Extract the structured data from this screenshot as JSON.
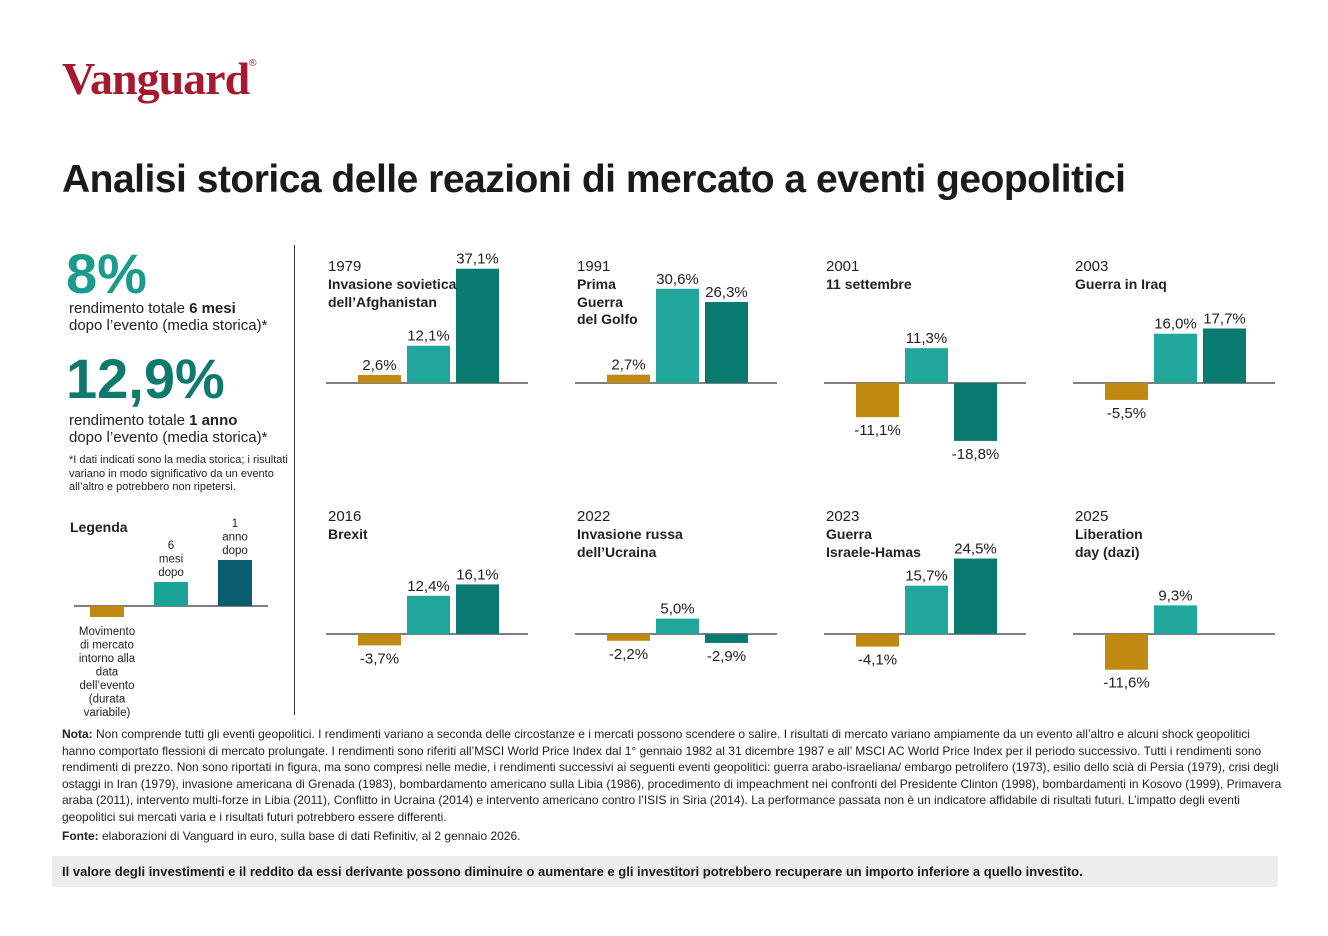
{
  "brand": "Vanguard",
  "brand_mark": "®",
  "title": "Analisi storica delle reazioni di mercato a eventi geopolitici",
  "summary": {
    "stat1": {
      "value": "8%",
      "label_pre": "rendimento totale ",
      "label_bold": "6 mesi",
      "label_post": "dopo l’evento (media storica)*"
    },
    "stat2": {
      "value": "12,9%",
      "label_pre": "rendimento totale ",
      "label_bold": "1 anno",
      "label_post": "dopo l’evento (media storica)*"
    },
    "footnote": "*I dati indicati sono la media storica; i risultati variano in modo significativo da un evento all’altro e potrebbero non ripetersi."
  },
  "legend": {
    "title": "Legenda",
    "items": [
      {
        "label": "Movimento di mercato intorno alla data dell’evento (durata variabile)",
        "lines": [
          "Movimento",
          "di mercato",
          "intorno alla",
          "data",
          "dell’evento",
          "(durata",
          "variabile)"
        ],
        "color": "#c08a12"
      },
      {
        "label": "6 mesi dopo",
        "lines": [
          "6",
          "mesi",
          "dopo"
        ],
        "color": "#1aa396"
      },
      {
        "label": "1 anno dopo",
        "lines": [
          "1",
          "anno",
          "dopo"
        ],
        "color": "#0b5e6e"
      }
    ]
  },
  "colors": {
    "event": "#c08a12",
    "six_months": "#20a69a",
    "one_year": "#087a70"
  },
  "chart_data": [
    {
      "type": "bar",
      "year": "1979",
      "title": "Invasione sovietica\ndell’Afghanistan",
      "categories": [
        "Movimento di mercato",
        "6 mesi dopo",
        "1 anno dopo"
      ],
      "values": [
        2.6,
        12.1,
        37.1
      ],
      "labels": [
        "2,6%",
        "12,1%",
        "37,1%"
      ],
      "ylim": [
        -20,
        40
      ]
    },
    {
      "type": "bar",
      "year": "1991",
      "title": "Prima\nGuerra\ndel Golfo",
      "categories": [
        "Movimento di mercato",
        "6 mesi dopo",
        "1 anno dopo"
      ],
      "values": [
        2.7,
        30.6,
        26.3
      ],
      "labels": [
        "2,7%",
        "30,6%",
        "26,3%"
      ],
      "ylim": [
        -20,
        40
      ]
    },
    {
      "type": "bar",
      "year": "2001",
      "title": "11 settembre",
      "categories": [
        "Movimento di mercato",
        "6 mesi dopo",
        "1 anno dopo"
      ],
      "values": [
        -11.1,
        11.3,
        -18.8
      ],
      "labels": [
        "-11,1%",
        "11,3%",
        "-18,8%"
      ],
      "ylim": [
        -20,
        40
      ]
    },
    {
      "type": "bar",
      "year": "2003",
      "title": "Guerra in Iraq",
      "categories": [
        "Movimento di mercato",
        "6 mesi dopo",
        "1 anno dopo"
      ],
      "values": [
        -5.5,
        16.0,
        17.7
      ],
      "labels": [
        "-5,5%",
        "16,0%",
        "17,7%"
      ],
      "ylim": [
        -20,
        40
      ]
    },
    {
      "type": "bar",
      "year": "2016",
      "title": "Brexit",
      "categories": [
        "Movimento di mercato",
        "6 mesi dopo",
        "1 anno dopo"
      ],
      "values": [
        -3.7,
        12.4,
        16.1
      ],
      "labels": [
        "-3,7%",
        "12,4%",
        "16,1%"
      ],
      "ylim": [
        -20,
        40
      ]
    },
    {
      "type": "bar",
      "year": "2022",
      "title": "Invasione russa\ndell’Ucraina",
      "categories": [
        "Movimento di mercato",
        "6 mesi dopo",
        "1 anno dopo"
      ],
      "values": [
        -2.2,
        5.0,
        -2.9
      ],
      "labels": [
        "-2,2%",
        "5,0%",
        "-2,9%"
      ],
      "ylim": [
        -20,
        40
      ]
    },
    {
      "type": "bar",
      "year": "2023",
      "title": "Guerra\nIsraele-Hamas",
      "categories": [
        "Movimento di mercato",
        "6 mesi dopo",
        "1 anno dopo"
      ],
      "values": [
        -4.1,
        15.7,
        24.5
      ],
      "labels": [
        "-4,1%",
        "15,7%",
        "24,5%"
      ],
      "ylim": [
        -20,
        40
      ]
    },
    {
      "type": "bar",
      "year": "2025",
      "title": "Liberation\nday (dazi)",
      "categories": [
        "Movimento di mercato",
        "6 mesi dopo"
      ],
      "values": [
        -11.6,
        9.3
      ],
      "labels": [
        "-11,6%",
        "9,3%"
      ],
      "ylim": [
        -20,
        40
      ]
    }
  ],
  "note": {
    "label": "Nota:",
    "text": " Non comprende tutti gli eventi geopolitici. I rendimenti variano a seconda delle circostanze e i mercati possono scendere o salire. I risultati di mercato variano ampiamente da un evento all’altro e alcuni shock geopolitici hanno comportato flessioni di mercato prolungate. I rendimenti sono riferiti all’MSCI World Price Index dal 1° gennaio 1982 al 31 dicembre 1987 e all’ MSCI AC World Price Index per il periodo successivo. Tutti i rendimenti sono rendimenti di prezzo. Non sono riportati in figura, ma sono compresi nelle medie, i rendimenti successivi ai seguenti eventi geopolitici: guerra arabo-israeliana/ embargo petrolifero (1973), esilio dello scià di Persia (1979), crisi degli ostaggi in Iran (1979), invasione americana di Grenada (1983), bombardamento americano sulla Libia (1986), procedimento di impeachment nei confronti del Presidente Clinton (1998), bombardamenti in Kosovo (1999), Primavera araba (2011), intervento multi-forze in Libia (2011), Conflitto in Ucraina (2014) e intervento americano contro l’ISIS in Siria (2014). La performance passata non è un indicatore affidabile di risultati futuri. L’impatto degli eventi geopolitici sui mercati varia e i risultati futuri potrebbero essere differenti."
  },
  "source": {
    "label": "Fonte:",
    "text": " elaborazioni di Vanguard in euro, sulla base di dati Refinitiv, al 2 gennaio 2026."
  },
  "disclaimer": "Il valore degli investimenti e il reddito da essi derivante possono diminuire o aumentare e gli investitori potrebbero recuperare un importo inferiore a quello investito."
}
